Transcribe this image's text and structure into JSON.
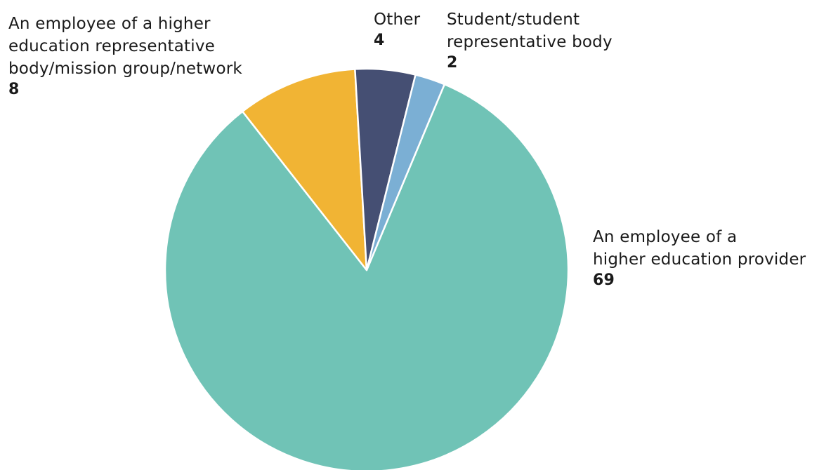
{
  "chart_data": {
    "type": "pie",
    "slices": [
      {
        "label": "An employee of a higher education provider",
        "label_lines": [
          "An employee of a",
          "higher education provider"
        ],
        "value": 69,
        "value_text": "69",
        "color": "#70c3b6"
      },
      {
        "label": "An employee of a higher education representative body/mission group/network",
        "label_lines": [
          "An employee of a higher",
          "education representative",
          "body/mission group/network"
        ],
        "value": 8,
        "value_text": "8",
        "color": "#f1b434"
      },
      {
        "label": "Other",
        "label_lines": [
          "Other"
        ],
        "value": 4,
        "value_text": "4",
        "color": "#454f73"
      },
      {
        "label": "Student/student representative body",
        "label_lines": [
          "Student/student",
          "representative body"
        ],
        "value": 2,
        "value_text": "2",
        "color": "#7bafd4"
      }
    ]
  }
}
